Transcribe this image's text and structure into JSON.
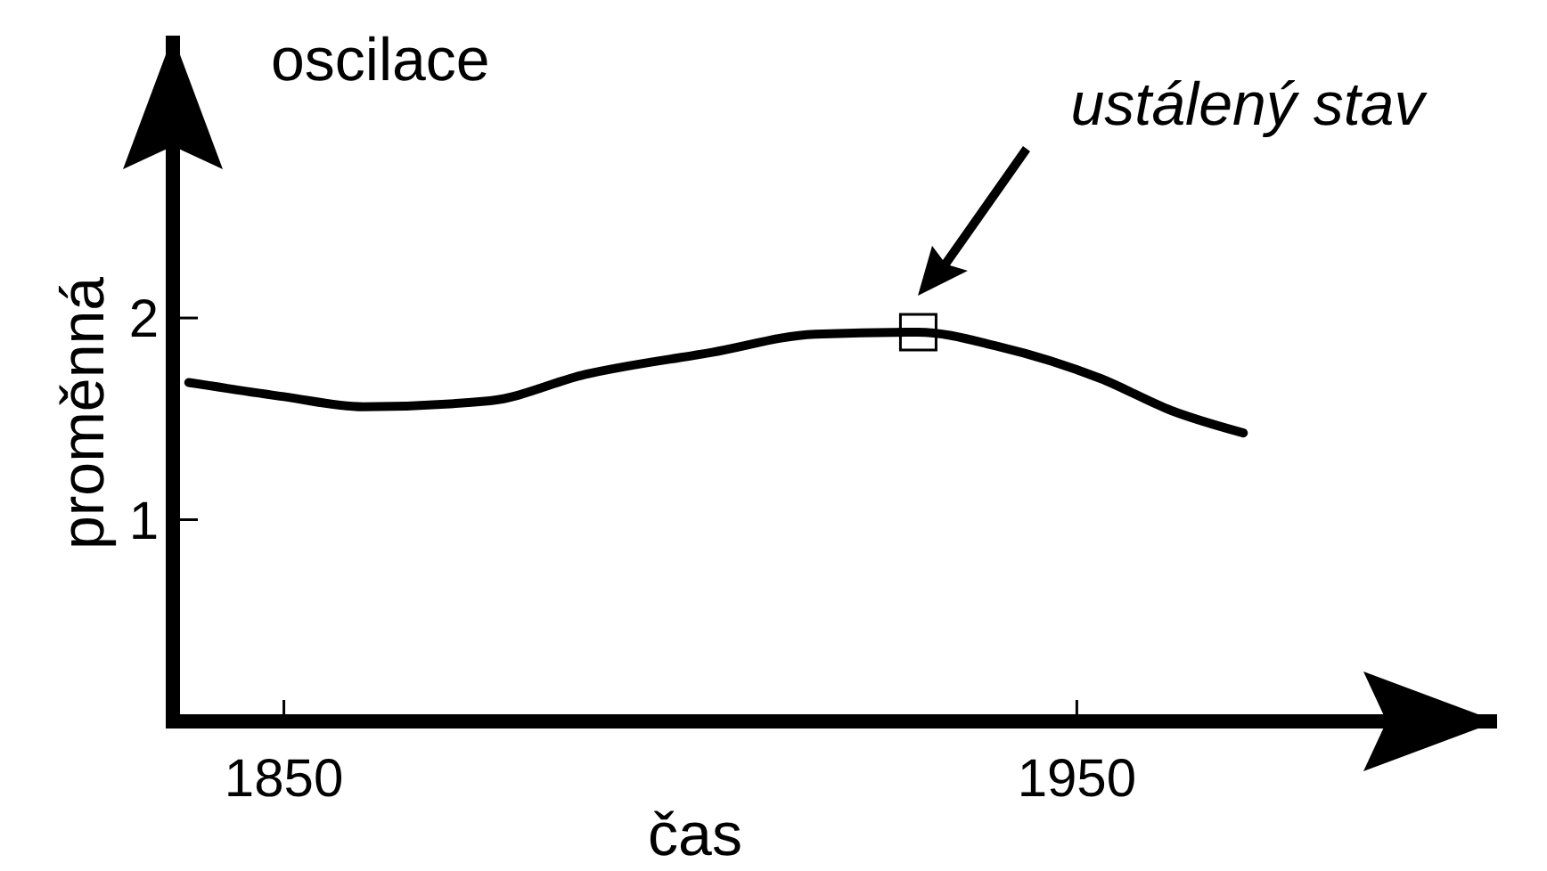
{
  "chart_data": {
    "type": "line",
    "title": "oscilace",
    "xlabel": "čas",
    "ylabel": "proměnná",
    "xlim": [
      1836,
      2003
    ],
    "ylim": [
      0,
      3.4
    ],
    "xticks": [
      1850,
      1950
    ],
    "yticks": [
      1,
      2
    ],
    "grid": false,
    "annotations": [
      "ustálený stav"
    ],
    "series": [
      {
        "color": "#000000",
        "x": [
          1838,
          1850,
          1860,
          1876,
          1888,
          1904,
          1917,
          1930,
          1940,
          1953,
          1962,
          1971
        ],
        "values": [
          1.68,
          1.61,
          1.56,
          1.59,
          1.72,
          1.83,
          1.92,
          1.93,
          1.86,
          1.7,
          1.54,
          1.43
        ],
        "marker": "none",
        "line_style": "solid"
      },
      {
        "type": "scatter",
        "color": "#000000",
        "x": [
          1930
        ],
        "values": [
          1.93
        ],
        "marker": "square"
      }
    ]
  }
}
